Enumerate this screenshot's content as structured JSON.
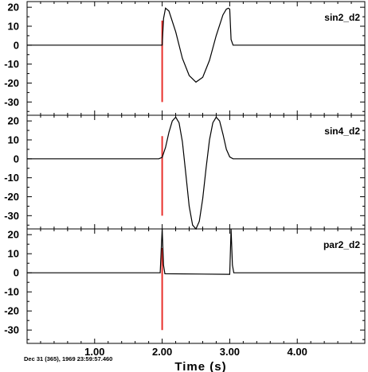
{
  "chart_data": {
    "type": "line",
    "xlabel": "Time (s)",
    "xlim": [
      0.0,
      5.0
    ],
    "x_ticks": [
      "1.00",
      "2.00",
      "3.00",
      "4.00"
    ],
    "x_tick_values": [
      1,
      2,
      3,
      4
    ],
    "timestamp": "Dec 31 (365), 1969 23:59:57.460",
    "line_color": "#000000",
    "marker_color": "#e8302c",
    "marker_time": 2.0,
    "panels": [
      {
        "name": "sin2_d2",
        "ylim": [
          -37,
          23
        ],
        "y_ticks": [
          "20",
          "10",
          "0",
          "-10",
          "-20",
          "-30"
        ],
        "y_tick_values": [
          20,
          10,
          0,
          -10,
          -20,
          -30
        ],
        "marker_y": [
          -30,
          13
        ],
        "series": {
          "x": [
            0.0,
            2.0,
            2.02,
            2.05,
            2.1,
            2.2,
            2.3,
            2.4,
            2.5,
            2.6,
            2.7,
            2.8,
            2.9,
            2.95,
            2.98,
            3.0,
            3.02,
            3.05,
            3.1,
            5.0
          ],
          "y": [
            0,
            0,
            14,
            19.5,
            18,
            7,
            -7,
            -16,
            -19.5,
            -17,
            -8,
            5,
            16,
            19,
            19.5,
            19,
            3,
            0,
            0,
            0
          ]
        }
      },
      {
        "name": "sin4_d2",
        "ylim": [
          -37,
          23
        ],
        "y_ticks": [
          "20",
          "10",
          "0",
          "-10",
          "-20",
          "-30"
        ],
        "y_tick_values": [
          20,
          10,
          0,
          -10,
          -20,
          -30
        ],
        "marker_y": [
          -30,
          12
        ],
        "series": {
          "x": [
            0.0,
            1.95,
            2.0,
            2.05,
            2.1,
            2.15,
            2.2,
            2.25,
            2.3,
            2.35,
            2.4,
            2.45,
            2.5,
            2.55,
            2.6,
            2.65,
            2.7,
            2.75,
            2.8,
            2.85,
            2.9,
            2.95,
            3.0,
            3.05,
            3.1,
            5.0
          ],
          "y": [
            0,
            0,
            0.8,
            6,
            14,
            20,
            22,
            19,
            9,
            -8,
            -25,
            -35,
            -37,
            -33,
            -21,
            -5,
            10,
            19,
            22,
            20,
            13,
            5,
            1,
            0,
            0,
            0
          ]
        }
      },
      {
        "name": "par2_d2",
        "ylim": [
          -37,
          23
        ],
        "y_ticks": [
          "20",
          "10",
          "0",
          "-10",
          "-20",
          "-30"
        ],
        "y_tick_values": [
          20,
          10,
          0,
          -10,
          -20,
          -30
        ],
        "marker_y": [
          -30,
          13
        ],
        "series": {
          "x": [
            0.0,
            1.97,
            2.0,
            2.02,
            2.04,
            3.0,
            3.02,
            3.04,
            3.06,
            5.0
          ],
          "y": [
            0,
            0,
            23,
            4,
            -0.5,
            -0.8,
            23,
            4,
            0,
            0
          ]
        }
      }
    ]
  }
}
